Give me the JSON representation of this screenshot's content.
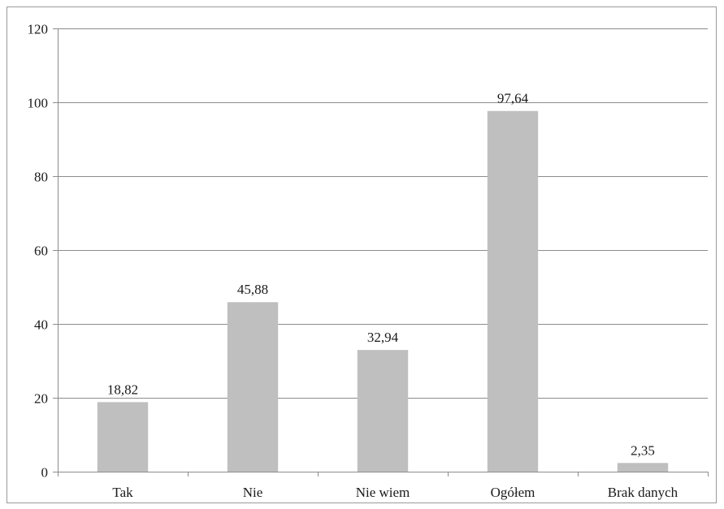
{
  "chart_data": {
    "type": "bar",
    "title": "",
    "xlabel": "",
    "ylabel": "",
    "categories": [
      "Tak",
      "Nie",
      "Nie wiem",
      "Ogółem",
      "Brak danych"
    ],
    "values": [
      18.82,
      45.88,
      32.94,
      97.64,
      2.35
    ],
    "data_labels": [
      "18,82",
      "45,88",
      "32,94",
      "97,64",
      "2,35"
    ],
    "ylim": [
      0,
      120
    ],
    "yticks": [
      0,
      20,
      40,
      60,
      80,
      100,
      120
    ],
    "ytick_labels": [
      "0",
      "20",
      "40",
      "60",
      "80",
      "100",
      "120"
    ],
    "grid": true,
    "legend": "none",
    "bar_color": "#bfbfbf",
    "grid_color": "#8c8c8c",
    "axis_color": "#8c8c8c"
  }
}
